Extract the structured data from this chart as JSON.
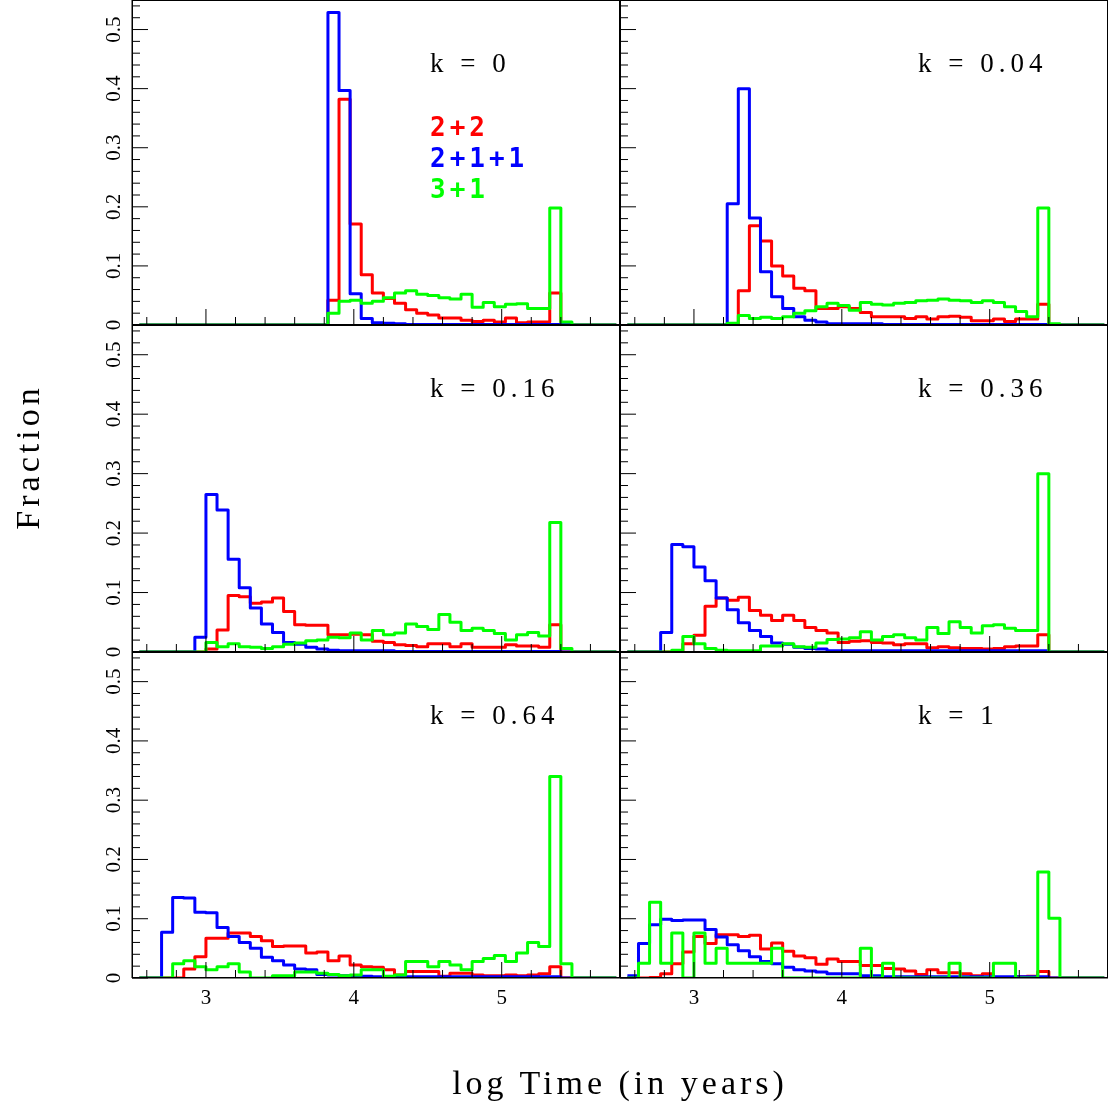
{
  "chart_data": [
    {
      "type": "histogram",
      "title": "k = 0",
      "legend": "top",
      "tick_labels": "y",
      "xlim": [
        2.5,
        5.8
      ],
      "ylim": [
        0,
        0.55
      ],
      "xticks": [
        {
          "value": 2.6,
          "label": null
        },
        {
          "value": 2.8,
          "label": null
        },
        3,
        {
          "value": 3.2,
          "label": null
        },
        {
          "value": 3.4,
          "label": null
        },
        {
          "value": 3.6,
          "label": null
        },
        {
          "value": 3.8,
          "label": null
        },
        4,
        {
          "value": 4.2,
          "label": null
        },
        {
          "value": 4.4,
          "label": null
        },
        {
          "value": 4.6,
          "label": null
        },
        {
          "value": 4.8,
          "label": null
        },
        5,
        {
          "value": 5.2,
          "label": null
        },
        {
          "value": 5.4,
          "label": null
        },
        {
          "value": 5.6,
          "label": null
        }
      ],
      "yticks": [
        0,
        {
          "value": 0.02,
          "label": null
        },
        {
          "value": 0.04,
          "label": null
        },
        {
          "value": 0.06,
          "label": null
        },
        {
          "value": 0.08,
          "label": null
        },
        0.1,
        {
          "value": 0.12,
          "label": null
        },
        {
          "value": 0.14,
          "label": null
        },
        {
          "value": 0.16,
          "label": null
        },
        {
          "value": 0.18,
          "label": null
        },
        0.2,
        {
          "value": 0.22,
          "label": null
        },
        {
          "value": 0.24,
          "label": null
        },
        {
          "value": 0.26,
          "label": null
        },
        {
          "value": 0.28,
          "label": null
        },
        0.3,
        {
          "value": 0.32,
          "label": null
        },
        {
          "value": 0.34,
          "label": null
        },
        {
          "value": 0.36,
          "label": null
        },
        {
          "value": 0.38,
          "label": null
        },
        0.4,
        {
          "value": 0.42,
          "label": null
        },
        {
          "value": 0.44,
          "label": null
        },
        {
          "value": 0.46,
          "label": null
        },
        {
          "value": 0.48,
          "label": null
        },
        0.5,
        {
          "value": 0.52,
          "label": null
        },
        {
          "value": 0.54,
          "label": null
        }
      ],
      "bins": [
        2.55,
        2.625,
        2.7,
        2.775,
        2.85,
        2.925,
        3,
        3.075,
        3.15,
        3.225,
        3.3,
        3.375,
        3.45,
        3.525,
        3.6,
        3.675,
        3.75,
        3.825,
        3.9,
        3.975,
        4.05,
        4.125,
        4.2,
        4.275,
        4.35,
        4.425,
        4.5,
        4.575,
        4.65,
        4.725,
        4.8,
        4.875,
        4.95,
        5.025,
        5.1,
        5.175,
        5.25,
        5.325,
        5.4,
        5.475,
        5.55,
        5.625,
        5.7,
        5.775
      ],
      "series": [
        {
          "name": "2+2",
          "color": "#ff0000",
          "values": [
            0,
            0,
            0,
            0,
            0,
            0,
            0,
            0,
            0,
            0,
            0,
            0,
            0,
            0,
            0,
            0,
            0,
            0.042,
            0.382,
            0.171,
            0.085,
            0.054,
            0.045,
            0.037,
            0.026,
            0.02,
            0.017,
            0.012,
            0.012,
            0.008,
            0.006,
            0.008,
            0.005,
            0.012,
            0.004,
            0.005,
            0.005,
            0.054,
            0,
            0,
            0,
            0,
            0
          ]
        },
        {
          "name": "2+1+1",
          "color": "#0000ff",
          "values": [
            0,
            0,
            0,
            0,
            0,
            0,
            0,
            0,
            0,
            0,
            0,
            0,
            0,
            0,
            0,
            0,
            0,
            0.529,
            0.397,
            0.053,
            0.011,
            0.004,
            0.003,
            0.002,
            0.001,
            0.001,
            0.001,
            0.001,
            0.001,
            0.001,
            0.001,
            0.001,
            0.001,
            0.001,
            0.001,
            0.001,
            0.001,
            0.001,
            0.001,
            0,
            0,
            0,
            0
          ]
        },
        {
          "name": "3+1",
          "color": "#00ff00",
          "values": [
            0,
            0,
            0,
            0,
            0,
            0,
            0,
            0,
            0,
            0,
            0,
            0,
            0,
            0,
            0,
            0,
            0,
            0.02,
            0.04,
            0.042,
            0.037,
            0.04,
            0.046,
            0.054,
            0.058,
            0.052,
            0.05,
            0.046,
            0.044,
            0.052,
            0.03,
            0.038,
            0.031,
            0.035,
            0.036,
            0.028,
            0.028,
            0.198,
            0.005,
            0,
            0,
            0,
            0
          ]
        }
      ]
    },
    {
      "type": "histogram",
      "title": "k = 0.04",
      "tick_labels": false,
      "xlim": [
        2.5,
        5.8
      ],
      "ylim": [
        0,
        0.55
      ],
      "xticks": [
        {
          "value": 2.6,
          "label": null
        },
        {
          "value": 2.8,
          "label": null
        },
        3,
        {
          "value": 3.2,
          "label": null
        },
        {
          "value": 3.4,
          "label": null
        },
        {
          "value": 3.6,
          "label": null
        },
        {
          "value": 3.8,
          "label": null
        },
        4,
        {
          "value": 4.2,
          "label": null
        },
        {
          "value": 4.4,
          "label": null
        },
        {
          "value": 4.6,
          "label": null
        },
        {
          "value": 4.8,
          "label": null
        },
        5,
        {
          "value": 5.2,
          "label": null
        },
        {
          "value": 5.4,
          "label": null
        },
        {
          "value": 5.6,
          "label": null
        }
      ],
      "yticks": [
        0,
        {
          "value": 0.02,
          "label": null
        },
        {
          "value": 0.04,
          "label": null
        },
        {
          "value": 0.06,
          "label": null
        },
        {
          "value": 0.08,
          "label": null
        },
        0.1,
        {
          "value": 0.12,
          "label": null
        },
        {
          "value": 0.14,
          "label": null
        },
        {
          "value": 0.16,
          "label": null
        },
        {
          "value": 0.18,
          "label": null
        },
        0.2,
        {
          "value": 0.22,
          "label": null
        },
        {
          "value": 0.24,
          "label": null
        },
        {
          "value": 0.26,
          "label": null
        },
        {
          "value": 0.28,
          "label": null
        },
        0.3,
        {
          "value": 0.32,
          "label": null
        },
        {
          "value": 0.34,
          "label": null
        },
        {
          "value": 0.36,
          "label": null
        },
        {
          "value": 0.38,
          "label": null
        },
        0.4,
        {
          "value": 0.42,
          "label": null
        },
        {
          "value": 0.44,
          "label": null
        },
        {
          "value": 0.46,
          "label": null
        },
        {
          "value": 0.48,
          "label": null
        },
        0.5,
        {
          "value": 0.52,
          "label": null
        },
        {
          "value": 0.54,
          "label": null
        }
      ],
      "bins": [
        2.55,
        2.625,
        2.7,
        2.775,
        2.85,
        2.925,
        3,
        3.075,
        3.15,
        3.225,
        3.3,
        3.375,
        3.45,
        3.525,
        3.6,
        3.675,
        3.75,
        3.825,
        3.9,
        3.975,
        4.05,
        4.125,
        4.2,
        4.275,
        4.35,
        4.425,
        4.5,
        4.575,
        4.65,
        4.725,
        4.8,
        4.875,
        4.95,
        5.025,
        5.1,
        5.175,
        5.25,
        5.325,
        5.4,
        5.475,
        5.55,
        5.625,
        5.7,
        5.775
      ],
      "series": [
        {
          "color": "#ff0000",
          "values": [
            0,
            0,
            0,
            0,
            0,
            0,
            0,
            0,
            0,
            0,
            0.058,
            0.168,
            0.142,
            0.1,
            0.083,
            0.062,
            0.058,
            0.028,
            0.028,
            0.031,
            0.028,
            0.021,
            0.014,
            0.014,
            0.014,
            0.011,
            0.014,
            0.01,
            0.014,
            0.015,
            0.013,
            0.007,
            0.007,
            0.01,
            0.006,
            0.01,
            0.01,
            0.035,
            0,
            0,
            0,
            0,
            0
          ]
        },
        {
          "color": "#0000ff",
          "values": [
            0,
            0,
            0,
            0,
            0,
            0,
            0,
            0,
            0,
            0.205,
            0.4,
            0.181,
            0.09,
            0.048,
            0.028,
            0.014,
            0.008,
            0.005,
            0.002,
            0.002,
            0.002,
            0.002,
            0.002,
            0.001,
            0.001,
            0.001,
            0.001,
            0.001,
            0.001,
            0.001,
            0.001,
            0.001,
            0.001,
            0.001,
            0.001,
            0.001,
            0.001,
            0.001,
            0,
            0,
            0,
            0,
            0
          ]
        },
        {
          "color": "#00ff00",
          "values": [
            0,
            0,
            0,
            0,
            0,
            0,
            0,
            0,
            0,
            0.003,
            0.016,
            0.011,
            0.013,
            0.011,
            0.014,
            0.02,
            0.024,
            0.031,
            0.037,
            0.033,
            0.025,
            0.038,
            0.035,
            0.034,
            0.037,
            0.038,
            0.041,
            0.042,
            0.044,
            0.042,
            0.041,
            0.038,
            0.041,
            0.038,
            0.031,
            0.023,
            0.014,
            0.198,
            0.002,
            0,
            0,
            0,
            0
          ]
        }
      ]
    },
    {
      "type": "histogram",
      "title": "k = 0.16",
      "ylabel": "Fraction",
      "tick_labels": "y",
      "xlim": [
        2.5,
        5.8
      ],
      "ylim": [
        0,
        0.55
      ],
      "xticks": [
        {
          "value": 2.6,
          "label": null
        },
        {
          "value": 2.8,
          "label": null
        },
        3,
        {
          "value": 3.2,
          "label": null
        },
        {
          "value": 3.4,
          "label": null
        },
        {
          "value": 3.6,
          "label": null
        },
        {
          "value": 3.8,
          "label": null
        },
        4,
        {
          "value": 4.2,
          "label": null
        },
        {
          "value": 4.4,
          "label": null
        },
        {
          "value": 4.6,
          "label": null
        },
        {
          "value": 4.8,
          "label": null
        },
        5,
        {
          "value": 5.2,
          "label": null
        },
        {
          "value": 5.4,
          "label": null
        },
        {
          "value": 5.6,
          "label": null
        }
      ],
      "yticks": [
        0,
        {
          "value": 0.02,
          "label": null
        },
        {
          "value": 0.04,
          "label": null
        },
        {
          "value": 0.06,
          "label": null
        },
        {
          "value": 0.08,
          "label": null
        },
        0.1,
        {
          "value": 0.12,
          "label": null
        },
        {
          "value": 0.14,
          "label": null
        },
        {
          "value": 0.16,
          "label": null
        },
        {
          "value": 0.18,
          "label": null
        },
        0.2,
        {
          "value": 0.22,
          "label": null
        },
        {
          "value": 0.24,
          "label": null
        },
        {
          "value": 0.26,
          "label": null
        },
        {
          "value": 0.28,
          "label": null
        },
        0.3,
        {
          "value": 0.32,
          "label": null
        },
        {
          "value": 0.34,
          "label": null
        },
        {
          "value": 0.36,
          "label": null
        },
        {
          "value": 0.38,
          "label": null
        },
        0.4,
        {
          "value": 0.42,
          "label": null
        },
        {
          "value": 0.44,
          "label": null
        },
        {
          "value": 0.46,
          "label": null
        },
        {
          "value": 0.48,
          "label": null
        },
        0.5,
        {
          "value": 0.52,
          "label": null
        },
        {
          "value": 0.54,
          "label": null
        }
      ],
      "bins": [
        2.55,
        2.625,
        2.7,
        2.775,
        2.85,
        2.925,
        3,
        3.075,
        3.15,
        3.225,
        3.3,
        3.375,
        3.45,
        3.525,
        3.6,
        3.675,
        3.75,
        3.825,
        3.9,
        3.975,
        4.05,
        4.125,
        4.2,
        4.275,
        4.35,
        4.425,
        4.5,
        4.575,
        4.65,
        4.725,
        4.8,
        4.875,
        4.95,
        5.025,
        5.1,
        5.175,
        5.25,
        5.325,
        5.4,
        5.475,
        5.55,
        5.625,
        5.7,
        5.775
      ],
      "series": [
        {
          "color": "#ff0000",
          "values": [
            0,
            0,
            0,
            0,
            0,
            0,
            0.005,
            0.037,
            0.095,
            0.093,
            0.082,
            0.084,
            0.091,
            0.068,
            0.046,
            0.045,
            0.045,
            0.029,
            0.029,
            0.03,
            0.029,
            0.018,
            0.016,
            0.012,
            0.011,
            0.009,
            0.014,
            0.014,
            0.009,
            0.014,
            0.008,
            0.008,
            0.008,
            0.012,
            0.01,
            0.01,
            0.008,
            0.046,
            0,
            0,
            0,
            0,
            0
          ]
        },
        {
          "color": "#0000ff",
          "values": [
            0,
            0,
            0,
            0,
            0,
            0.025,
            0.265,
            0.239,
            0.156,
            0.108,
            0.074,
            0.047,
            0.033,
            0.016,
            0.013,
            0.008,
            0.005,
            0.003,
            0.002,
            0.002,
            0.002,
            0.002,
            0.002,
            0.001,
            0.001,
            0.001,
            0.001,
            0.001,
            0.001,
            0.001,
            0.001,
            0.001,
            0.001,
            0.001,
            0.001,
            0.001,
            0.001,
            0.001,
            0,
            0,
            0,
            0,
            0
          ]
        },
        {
          "color": "#00ff00",
          "values": [
            0,
            0,
            0,
            0,
            0,
            0,
            0.016,
            0.009,
            0.014,
            0.009,
            0.008,
            0.006,
            0.009,
            0.013,
            0.015,
            0.019,
            0.02,
            0.025,
            0.024,
            0.032,
            0.02,
            0.036,
            0.029,
            0.032,
            0.047,
            0.043,
            0.038,
            0.063,
            0.05,
            0.036,
            0.04,
            0.036,
            0.031,
            0.02,
            0.029,
            0.033,
            0.027,
            0.218,
            0.006,
            0,
            0,
            0,
            0
          ]
        }
      ]
    },
    {
      "type": "histogram",
      "title": "k = 0.36",
      "tick_labels": false,
      "xlim": [
        2.5,
        5.8
      ],
      "ylim": [
        0,
        0.55
      ],
      "xticks": [
        {
          "value": 2.6,
          "label": null
        },
        {
          "value": 2.8,
          "label": null
        },
        3,
        {
          "value": 3.2,
          "label": null
        },
        {
          "value": 3.4,
          "label": null
        },
        {
          "value": 3.6,
          "label": null
        },
        {
          "value": 3.8,
          "label": null
        },
        4,
        {
          "value": 4.2,
          "label": null
        },
        {
          "value": 4.4,
          "label": null
        },
        {
          "value": 4.6,
          "label": null
        },
        {
          "value": 4.8,
          "label": null
        },
        5,
        {
          "value": 5.2,
          "label": null
        },
        {
          "value": 5.4,
          "label": null
        },
        {
          "value": 5.6,
          "label": null
        }
      ],
      "yticks": [
        0,
        {
          "value": 0.02,
          "label": null
        },
        {
          "value": 0.04,
          "label": null
        },
        {
          "value": 0.06,
          "label": null
        },
        {
          "value": 0.08,
          "label": null
        },
        0.1,
        {
          "value": 0.12,
          "label": null
        },
        {
          "value": 0.14,
          "label": null
        },
        {
          "value": 0.16,
          "label": null
        },
        {
          "value": 0.18,
          "label": null
        },
        0.2,
        {
          "value": 0.22,
          "label": null
        },
        {
          "value": 0.24,
          "label": null
        },
        {
          "value": 0.26,
          "label": null
        },
        {
          "value": 0.28,
          "label": null
        },
        0.3,
        {
          "value": 0.32,
          "label": null
        },
        {
          "value": 0.34,
          "label": null
        },
        {
          "value": 0.36,
          "label": null
        },
        {
          "value": 0.38,
          "label": null
        },
        0.4,
        {
          "value": 0.42,
          "label": null
        },
        {
          "value": 0.44,
          "label": null
        },
        {
          "value": 0.46,
          "label": null
        },
        {
          "value": 0.48,
          "label": null
        },
        0.5,
        {
          "value": 0.52,
          "label": null
        },
        {
          "value": 0.54,
          "label": null
        }
      ],
      "bins": [
        2.55,
        2.625,
        2.7,
        2.775,
        2.85,
        2.925,
        3,
        3.075,
        3.15,
        3.225,
        3.3,
        3.375,
        3.45,
        3.525,
        3.6,
        3.675,
        3.75,
        3.825,
        3.9,
        3.975,
        4.05,
        4.125,
        4.2,
        4.275,
        4.35,
        4.425,
        4.5,
        4.575,
        4.65,
        4.725,
        4.8,
        4.875,
        4.95,
        5.025,
        5.1,
        5.175,
        5.25,
        5.325,
        5.4,
        5.475,
        5.55,
        5.625,
        5.7,
        5.775
      ],
      "series": [
        {
          "color": "#ff0000",
          "values": [
            0,
            0,
            0,
            0,
            0,
            0.014,
            0.028,
            0.077,
            0.091,
            0.087,
            0.092,
            0.07,
            0.062,
            0.053,
            0.062,
            0.053,
            0.041,
            0.036,
            0.032,
            0.016,
            0.018,
            0.019,
            0.016,
            0.015,
            0.012,
            0.014,
            0.014,
            0.007,
            0.009,
            0.007,
            0.006,
            0.006,
            0.005,
            0.006,
            0.009,
            0.01,
            0.01,
            0.029,
            0,
            0,
            0,
            0,
            0
          ]
        },
        {
          "color": "#0000ff",
          "values": [
            0,
            0,
            0,
            0.033,
            0.181,
            0.177,
            0.143,
            0.12,
            0.091,
            0.071,
            0.049,
            0.036,
            0.026,
            0.015,
            0.013,
            0.008,
            0.006,
            0.005,
            0.002,
            0.002,
            0.002,
            0.002,
            0.002,
            0.002,
            0.002,
            0.002,
            0.002,
            0.002,
            0.002,
            0.002,
            0.002,
            0.002,
            0.002,
            0.002,
            0.002,
            0.002,
            0.002,
            0.002,
            0,
            0,
            0,
            0,
            0
          ]
        },
        {
          "color": "#00ff00",
          "values": [
            0,
            0,
            0,
            0,
            0.003,
            0.026,
            0.014,
            0.006,
            0.003,
            0.002,
            0.002,
            0.002,
            0.01,
            0.01,
            0.014,
            0.009,
            0.008,
            0.015,
            0.021,
            0.022,
            0.024,
            0.034,
            0.02,
            0.026,
            0.029,
            0.024,
            0.02,
            0.041,
            0.031,
            0.051,
            0.041,
            0.032,
            0.044,
            0.046,
            0.04,
            0.036,
            0.036,
            0.3,
            0,
            0,
            0,
            0,
            0
          ]
        }
      ]
    },
    {
      "type": "histogram",
      "title": "k = 0.64",
      "xlabel": "log Time (in years)",
      "xlim": [
        2.5,
        5.8
      ],
      "ylim": [
        0,
        0.55
      ],
      "xticks": [
        {
          "value": 2.6,
          "label": null
        },
        {
          "value": 2.8,
          "label": null
        },
        3,
        {
          "value": 3.2,
          "label": null
        },
        {
          "value": 3.4,
          "label": null
        },
        {
          "value": 3.6,
          "label": null
        },
        {
          "value": 3.8,
          "label": null
        },
        4,
        {
          "value": 4.2,
          "label": null
        },
        {
          "value": 4.4,
          "label": null
        },
        {
          "value": 4.6,
          "label": null
        },
        {
          "value": 4.8,
          "label": null
        },
        5,
        {
          "value": 5.2,
          "label": null
        },
        {
          "value": 5.4,
          "label": null
        },
        {
          "value": 5.6,
          "label": null
        }
      ],
      "yticks": [
        0,
        {
          "value": 0.02,
          "label": null
        },
        {
          "value": 0.04,
          "label": null
        },
        {
          "value": 0.06,
          "label": null
        },
        {
          "value": 0.08,
          "label": null
        },
        0.1,
        {
          "value": 0.12,
          "label": null
        },
        {
          "value": 0.14,
          "label": null
        },
        {
          "value": 0.16,
          "label": null
        },
        {
          "value": 0.18,
          "label": null
        },
        0.2,
        {
          "value": 0.22,
          "label": null
        },
        {
          "value": 0.24,
          "label": null
        },
        {
          "value": 0.26,
          "label": null
        },
        {
          "value": 0.28,
          "label": null
        },
        0.3,
        {
          "value": 0.32,
          "label": null
        },
        {
          "value": 0.34,
          "label": null
        },
        {
          "value": 0.36,
          "label": null
        },
        {
          "value": 0.38,
          "label": null
        },
        0.4,
        {
          "value": 0.42,
          "label": null
        },
        {
          "value": 0.44,
          "label": null
        },
        {
          "value": 0.46,
          "label": null
        },
        {
          "value": 0.48,
          "label": null
        },
        0.5,
        {
          "value": 0.52,
          "label": null
        },
        {
          "value": 0.54,
          "label": null
        }
      ],
      "bins": [
        2.55,
        2.625,
        2.7,
        2.775,
        2.85,
        2.925,
        3,
        3.075,
        3.15,
        3.225,
        3.3,
        3.375,
        3.45,
        3.525,
        3.6,
        3.675,
        3.75,
        3.825,
        3.9,
        3.975,
        4.05,
        4.125,
        4.2,
        4.275,
        4.35,
        4.425,
        4.5,
        4.575,
        4.65,
        4.725,
        4.8,
        4.875,
        4.95,
        5.025,
        5.1,
        5.175,
        5.25,
        5.325,
        5.4,
        5.475,
        5.55,
        5.625,
        5.7,
        5.775
      ],
      "series": [
        {
          "color": "#ff0000",
          "values": [
            0,
            0,
            0,
            0,
            0.015,
            0.036,
            0.067,
            0.067,
            0.076,
            0.076,
            0.07,
            0.063,
            0.053,
            0.054,
            0.054,
            0.042,
            0.044,
            0.029,
            0.037,
            0.022,
            0.019,
            0.018,
            0.014,
            0.005,
            0.011,
            0.011,
            0.011,
            0.003,
            0.008,
            0.008,
            0.005,
            0.004,
            0.004,
            0.005,
            0.004,
            0.005,
            0.007,
            0.019,
            0,
            0,
            0,
            0,
            0
          ]
        },
        {
          "color": "#0000ff",
          "values": [
            0,
            0,
            0.077,
            0.136,
            0.135,
            0.111,
            0.11,
            0.085,
            0.07,
            0.06,
            0.05,
            0.035,
            0.029,
            0.022,
            0.015,
            0.014,
            0.006,
            0.005,
            0.004,
            0.004,
            0.003,
            0.002,
            0.002,
            0.002,
            0.002,
            0.002,
            0.002,
            0.002,
            0.002,
            0.002,
            0.002,
            0.002,
            0.002,
            0.002,
            0.002,
            0.002,
            0.002,
            0.002,
            0,
            0,
            0,
            0,
            0
          ]
        },
        {
          "color": "#00ff00",
          "values": [
            0,
            0,
            0,
            0.024,
            0.029,
            0.019,
            0.014,
            0.019,
            0.024,
            0.01,
            0,
            0,
            0.004,
            0.004,
            0.01,
            0.01,
            0.008,
            0.006,
            0.004,
            0.005,
            0.014,
            0.014,
            0.003,
            0.005,
            0.028,
            0.028,
            0.019,
            0.028,
            0.022,
            0.014,
            0.028,
            0.033,
            0.038,
            0.028,
            0.042,
            0.06,
            0.053,
            0.34,
            0.024,
            0,
            0,
            0,
            0
          ]
        }
      ]
    },
    {
      "type": "histogram",
      "title": "k = 1",
      "tick_labels": "x",
      "xlim": [
        2.5,
        5.8
      ],
      "ylim": [
        0,
        0.55
      ],
      "xticks": [
        {
          "value": 2.6,
          "label": null
        },
        {
          "value": 2.8,
          "label": null
        },
        3,
        {
          "value": 3.2,
          "label": null
        },
        {
          "value": 3.4,
          "label": null
        },
        {
          "value": 3.6,
          "label": null
        },
        {
          "value": 3.8,
          "label": null
        },
        4,
        {
          "value": 4.2,
          "label": null
        },
        {
          "value": 4.4,
          "label": null
        },
        {
          "value": 4.6,
          "label": null
        },
        {
          "value": 4.8,
          "label": null
        },
        5,
        {
          "value": 5.2,
          "label": null
        },
        {
          "value": 5.4,
          "label": null
        },
        {
          "value": 5.6,
          "label": null
        }
      ],
      "yticks": [
        0,
        {
          "value": 0.02,
          "label": null
        },
        {
          "value": 0.04,
          "label": null
        },
        {
          "value": 0.06,
          "label": null
        },
        {
          "value": 0.08,
          "label": null
        },
        0.1,
        {
          "value": 0.12,
          "label": null
        },
        {
          "value": 0.14,
          "label": null
        },
        {
          "value": 0.16,
          "label": null
        },
        {
          "value": 0.18,
          "label": null
        },
        0.2,
        {
          "value": 0.22,
          "label": null
        },
        {
          "value": 0.24,
          "label": null
        },
        {
          "value": 0.26,
          "label": null
        },
        {
          "value": 0.28,
          "label": null
        },
        0.3,
        {
          "value": 0.32,
          "label": null
        },
        {
          "value": 0.34,
          "label": null
        },
        {
          "value": 0.36,
          "label": null
        },
        {
          "value": 0.38,
          "label": null
        },
        0.4,
        {
          "value": 0.42,
          "label": null
        },
        {
          "value": 0.44,
          "label": null
        },
        {
          "value": 0.46,
          "label": null
        },
        {
          "value": 0.48,
          "label": null
        },
        0.5,
        {
          "value": 0.52,
          "label": null
        },
        {
          "value": 0.54,
          "label": null
        }
      ],
      "bins": [
        2.55,
        2.625,
        2.7,
        2.775,
        2.85,
        2.925,
        3,
        3.075,
        3.15,
        3.225,
        3.3,
        3.375,
        3.45,
        3.525,
        3.6,
        3.675,
        3.75,
        3.825,
        3.9,
        3.975,
        4.05,
        4.125,
        4.2,
        4.275,
        4.35,
        4.425,
        4.5,
        4.575,
        4.65,
        4.725,
        4.8,
        4.875,
        4.95,
        5.025,
        5.1,
        5.175,
        5.25,
        5.325,
        5.4,
        5.475,
        5.55,
        5.625,
        5.7,
        5.775
      ],
      "series": [
        {
          "color": "#ff0000",
          "values": [
            0,
            0,
            0.001,
            0.007,
            0.024,
            0.044,
            0.07,
            0.058,
            0.073,
            0.073,
            0.07,
            0.072,
            0.049,
            0.059,
            0.045,
            0.037,
            0.034,
            0.023,
            0.032,
            0.028,
            0.028,
            0.021,
            0.021,
            0.016,
            0.015,
            0.012,
            0.006,
            0.014,
            0.009,
            0.009,
            0.007,
            0.004,
            0.007,
            0.001,
            0.001,
            0.002,
            0.003,
            0.011,
            0,
            0,
            0,
            0,
            0
          ]
        },
        {
          "color": "#0000ff",
          "values": [
            0.004,
            0.058,
            0.09,
            0.099,
            0.097,
            0.098,
            0.098,
            0.082,
            0.069,
            0.056,
            0.046,
            0.036,
            0.028,
            0.024,
            0.018,
            0.014,
            0.012,
            0.01,
            0.007,
            0.007,
            0.007,
            0.004,
            0.004,
            0.002,
            0.002,
            0.002,
            0.002,
            0.002,
            0.002,
            0.002,
            0.002,
            0.002,
            0.002,
            0.002,
            0.002,
            0.002,
            0.002,
            0.002,
            0,
            0,
            0,
            0,
            0
          ]
        },
        {
          "color": "#00ff00",
          "values": [
            0,
            0.025,
            0.128,
            0.025,
            0.076,
            0,
            0.076,
            0.025,
            0.05,
            0.025,
            0.025,
            0.025,
            0.025,
            0.05,
            0,
            0,
            0,
            0,
            0,
            0,
            0,
            0.05,
            0,
            0.025,
            0,
            0,
            0,
            0,
            0,
            0.025,
            0,
            0,
            0,
            0.025,
            0.025,
            0,
            0,
            0.179,
            0.101,
            0,
            0,
            0,
            0
          ]
        }
      ]
    }
  ]
}
